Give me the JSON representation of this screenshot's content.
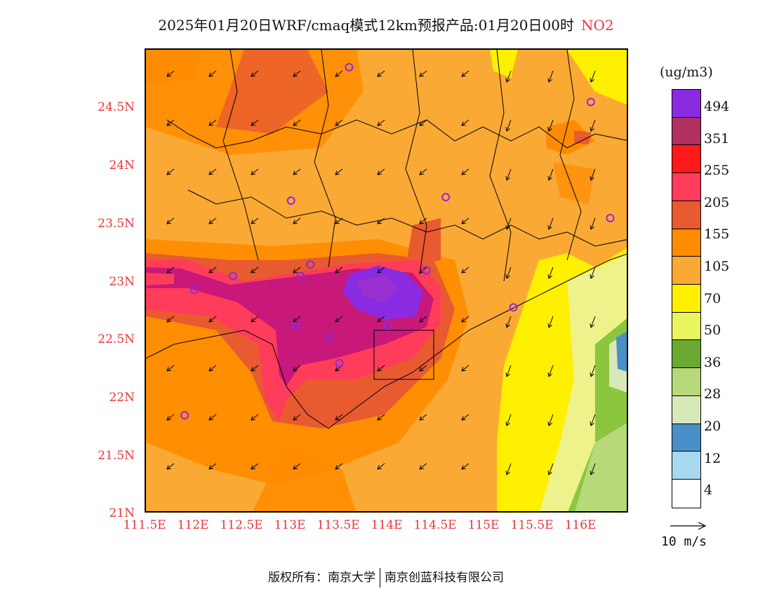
{
  "title": {
    "main": "2025年01月20日WRF/cmaq模式12km预报产品:01月20日00时",
    "pollutant": "NO2"
  },
  "axes": {
    "y_ticks": [
      "24.5N",
      "24N",
      "23.5N",
      "23N",
      "22.5N",
      "22N",
      "21.5N",
      "21N"
    ],
    "x_ticks": [
      "111.5E",
      "112E",
      "112.5E",
      "113E",
      "113.5E",
      "114E",
      "114.5E",
      "115E",
      "115.5E",
      "116E"
    ]
  },
  "legend": {
    "unit": "(ug/m3)",
    "labels": [
      "494",
      "351",
      "255",
      "205",
      "155",
      "105",
      "70",
      "50",
      "36",
      "28",
      "20",
      "12",
      "4"
    ],
    "colors": [
      "#8a2be2",
      "#9b30d0",
      "#b03060",
      "#c8187a",
      "#ff1a1a",
      "#ff1a5a",
      "#ff3c5a",
      "#ff6660",
      "#e85a30",
      "#ff8c00",
      "#fba935",
      "#ffd700",
      "#ffef00",
      "#eef28a",
      "#e8f560",
      "#6aa832",
      "#8cc63f",
      "#b8d97a",
      "#c8e08c",
      "#d8e8b8",
      "#4a8fc8",
      "#6ab0e0",
      "#a8d8f0",
      "#d8eefa",
      "#ffffff"
    ]
  },
  "reference_vector": {
    "label": "10 m/s"
  },
  "footer": {
    "left": "版权所有：南京大学",
    "right": "南京创蓝科技有限公司"
  },
  "map": {
    "lon_range": [
      111.5,
      116.5
    ],
    "lat_range": [
      21.0,
      25.0
    ],
    "stations": [
      [
        113.6,
        24.85
      ],
      [
        116.1,
        24.55
      ],
      [
        113.0,
        23.7
      ],
      [
        114.6,
        23.73
      ],
      [
        116.3,
        23.55
      ],
      [
        112.4,
        23.05
      ],
      [
        113.1,
        23.05
      ],
      [
        113.2,
        23.15
      ],
      [
        113.75,
        23.05
      ],
      [
        114.4,
        23.1
      ],
      [
        112.0,
        22.93
      ],
      [
        113.05,
        22.62
      ],
      [
        113.4,
        22.52
      ],
      [
        114.0,
        22.62
      ],
      [
        113.5,
        22.3
      ],
      [
        115.3,
        22.78
      ],
      [
        111.9,
        21.85
      ]
    ],
    "concentration_zones": [
      {
        "level": 105,
        "color": "#fba935"
      },
      {
        "level": 155,
        "color": "#ff8c00"
      },
      {
        "level": 205,
        "color": "#e85a30"
      },
      {
        "level": 255,
        "color": "#ff3c5a"
      },
      {
        "level": 351,
        "color": "#c8187a"
      },
      {
        "level": 494,
        "color": "#8a2be2"
      }
    ]
  }
}
